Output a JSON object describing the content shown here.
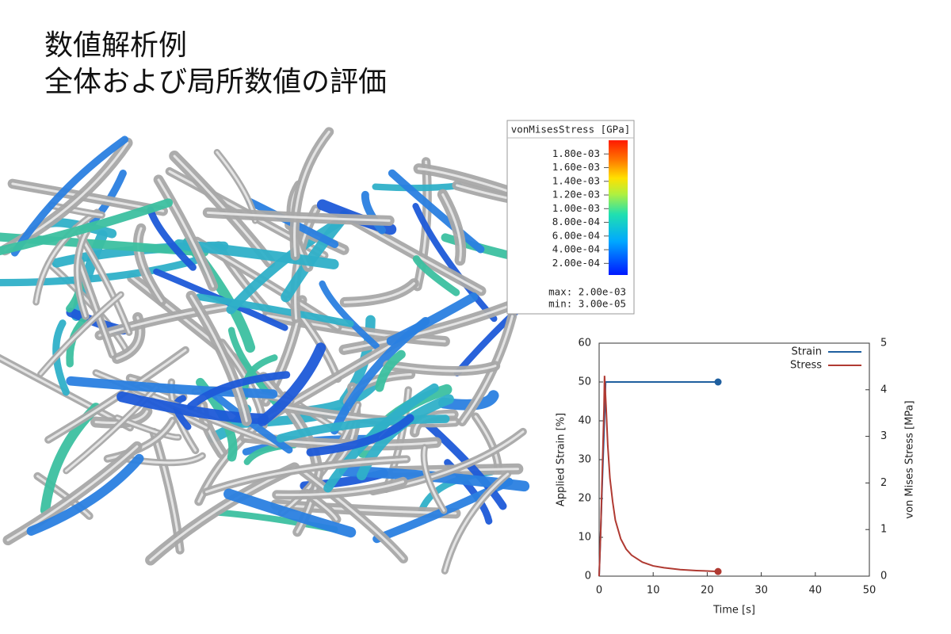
{
  "slide": {
    "title_lines": [
      "数値解析例",
      "全体および局所数値の評価"
    ]
  },
  "colorbar": {
    "title": "vonMisesStress [GPa]",
    "lim": [
      3e-05,
      0.002
    ],
    "ticks": [
      {
        "value": 0.0018,
        "label": "1.80e-03"
      },
      {
        "value": 0.0016,
        "label": "1.60e-03"
      },
      {
        "value": 0.0014,
        "label": "1.40e-03"
      },
      {
        "value": 0.0012,
        "label": "1.20e-03"
      },
      {
        "value": 0.001,
        "label": "1.00e-03"
      },
      {
        "value": 0.0008,
        "label": "8.00e-04"
      },
      {
        "value": 0.0006,
        "label": "6.00e-04"
      },
      {
        "value": 0.0004,
        "label": "4.00e-04"
      },
      {
        "value": 0.0002,
        "label": "2.00e-04"
      }
    ],
    "max": {
      "value": 0.002,
      "label": "max: 2.00e-03"
    },
    "min": {
      "value": 3e-05,
      "label": "min: 3.00e-05"
    }
  },
  "chart_data": {
    "type": "line",
    "xlabel": "Time [s]",
    "ylabel": "Applied Strain [%]",
    "y2label": "von Mises Stress [MPa]",
    "xlim": [
      0,
      50
    ],
    "xticks": [
      0,
      10,
      20,
      30,
      40,
      50
    ],
    "ylim": [
      0,
      60
    ],
    "yticks": [
      0,
      10,
      20,
      30,
      40,
      50,
      60
    ],
    "y2lim": [
      0,
      5
    ],
    "y2ticks": [
      0,
      1,
      2,
      3,
      4,
      5
    ],
    "legend": "upper right",
    "series": [
      {
        "name": "Strain",
        "color": "#1f5f9f",
        "x": [
          0,
          0.3,
          0.6,
          0.9,
          1.2,
          22
        ],
        "values": [
          0,
          12,
          25,
          37,
          50,
          50
        ]
      },
      {
        "name": "Stress",
        "color": "#b03a32",
        "axis": "y2",
        "x": [
          0,
          0.3,
          0.6,
          0.9,
          1.0,
          1.3,
          1.6,
          2,
          2.5,
          3,
          4,
          5,
          6,
          8,
          10,
          12,
          15,
          18,
          22
        ],
        "values": [
          0,
          1,
          2.3,
          3.6,
          4.3,
          3.6,
          2.8,
          2.1,
          1.6,
          1.2,
          0.8,
          0.58,
          0.45,
          0.3,
          0.22,
          0.18,
          0.14,
          0.12,
          0.1
        ]
      }
    ]
  }
}
